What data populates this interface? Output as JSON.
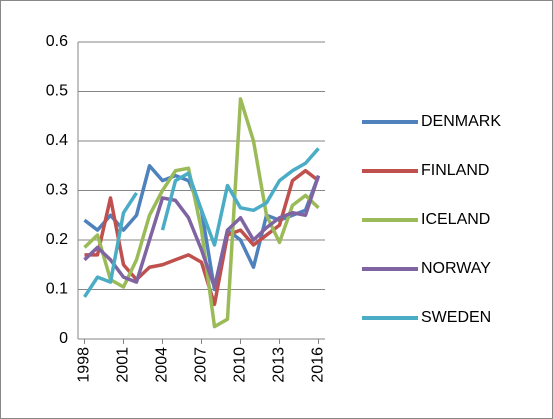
{
  "chart_data": {
    "type": "line",
    "x": [
      1998,
      1999,
      2000,
      2001,
      2002,
      2003,
      2004,
      2005,
      2006,
      2007,
      2008,
      2009,
      2010,
      2011,
      2012,
      2013,
      2014,
      2015,
      2016
    ],
    "xlim": [
      1997.5,
      2016.5
    ],
    "xticks": [
      1998,
      2001,
      2004,
      2007,
      2010,
      2013,
      2016
    ],
    "ylim": [
      0,
      0.6
    ],
    "yticks": [
      0,
      0.1,
      0.2,
      0.3,
      0.4,
      0.5,
      0.6
    ],
    "grid": true,
    "legend": "right",
    "series": [
      {
        "name": "DENMARK",
        "color": "#4f81bd",
        "values": [
          0.24,
          0.22,
          0.25,
          0.22,
          0.25,
          0.35,
          0.32,
          0.33,
          0.32,
          0.26,
          0.1,
          0.22,
          0.2,
          0.145,
          0.25,
          0.24,
          0.25,
          0.26,
          0.33
        ]
      },
      {
        "name": "FINLAND",
        "color": "#c0504d",
        "values": [
          0.17,
          0.17,
          0.285,
          0.15,
          0.12,
          0.145,
          0.15,
          0.16,
          0.17,
          0.155,
          0.07,
          0.21,
          0.22,
          0.19,
          0.21,
          0.23,
          0.32,
          0.34,
          0.32
        ]
      },
      {
        "name": "ICELAND",
        "color": "#9bbb59",
        "values": [
          0.185,
          0.21,
          0.12,
          0.105,
          0.16,
          0.25,
          0.3,
          0.34,
          0.345,
          0.22,
          0.025,
          0.04,
          0.485,
          0.4,
          0.25,
          0.195,
          0.27,
          0.29,
          0.265
        ]
      },
      {
        "name": "NORWAY",
        "color": "#8064a2",
        "values": [
          0.16,
          0.185,
          0.16,
          0.125,
          0.115,
          0.2,
          0.285,
          0.28,
          0.245,
          0.18,
          0.105,
          0.22,
          0.245,
          0.2,
          0.225,
          0.245,
          0.255,
          0.25,
          0.33
        ]
      },
      {
        "name": "SWEDEN",
        "color": "#4bacc6",
        "values": [
          0.085,
          0.125,
          0.115,
          0.255,
          0.295,
          null,
          0.22,
          0.32,
          0.335,
          0.26,
          0.19,
          0.31,
          0.265,
          0.26,
          0.275,
          0.32,
          0.34,
          0.355,
          0.385
        ]
      }
    ]
  }
}
